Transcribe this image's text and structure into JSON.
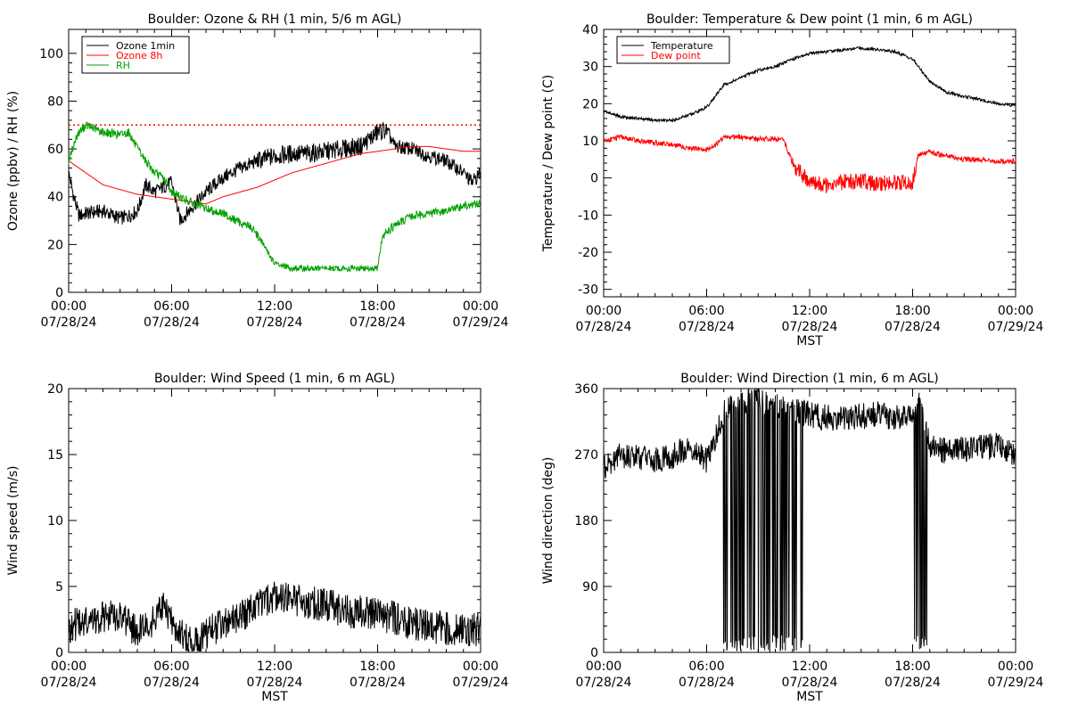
{
  "chart_data": [
    {
      "type": "line",
      "title": "Boulder: Ozone & RH (1 min, 5/6 m AGL)",
      "xlabel": "",
      "ylabel": "Ozone (ppbv) / RH (%)",
      "xlim": [
        0,
        24
      ],
      "ylim": [
        0,
        110
      ],
      "xticks": [
        "00:00\n07/28/24",
        "06:00\n07/28/24",
        "12:00\n07/28/24",
        "18:00\n07/28/24",
        "00:00\n07/29/24"
      ],
      "yticks": [
        0,
        20,
        40,
        60,
        80,
        100
      ],
      "legend": {
        "position": "top-left"
      },
      "reference_lines": [
        {
          "y": 70,
          "color": "#ff0000",
          "style": "dotted"
        }
      ],
      "series": [
        {
          "name": "Ozone 1min",
          "color": "#000000",
          "x": [
            0,
            0.3,
            0.6,
            1,
            2,
            3,
            3.5,
            4,
            4.5,
            5,
            5.5,
            6,
            6.5,
            7,
            8,
            9,
            10,
            11,
            12,
            13,
            14,
            15,
            16,
            17,
            18,
            18.5,
            19,
            20,
            21,
            22,
            23,
            23.5,
            24
          ],
          "y": [
            50,
            40,
            32,
            33,
            34,
            31,
            32,
            34,
            45,
            42,
            44,
            46,
            30,
            34,
            42,
            48,
            52,
            55,
            57,
            58,
            58,
            59,
            60,
            61,
            67,
            68,
            61,
            60,
            57,
            55,
            50,
            46,
            50
          ]
        },
        {
          "name": "Ozone 8h",
          "color": "#ff0000",
          "x": [
            0,
            1,
            2,
            3,
            4,
            5,
            6,
            7,
            8,
            9,
            10,
            11,
            12,
            13,
            14,
            15,
            16,
            17,
            18,
            19,
            20,
            21,
            22,
            23,
            24
          ],
          "y": [
            55,
            50,
            45,
            43,
            41,
            40,
            39,
            38,
            37,
            40,
            42,
            44,
            47,
            50,
            52,
            54,
            56,
            58,
            59,
            60,
            61,
            61,
            60,
            59,
            59
          ]
        },
        {
          "name": "RH",
          "color": "#00a000",
          "x": [
            0,
            0.5,
            1,
            2,
            3,
            3.5,
            4,
            5,
            5.5,
            6,
            7,
            8,
            9,
            10,
            10.5,
            11,
            11.5,
            12,
            13,
            14,
            15,
            16,
            17,
            18,
            18.3,
            19,
            20,
            21,
            22,
            23,
            24
          ],
          "y": [
            55,
            66,
            70,
            67,
            66,
            67,
            60,
            50,
            48,
            42,
            38,
            35,
            33,
            29,
            28,
            24,
            18,
            12,
            10,
            10,
            10,
            10,
            10,
            10,
            24,
            28,
            32,
            33,
            34,
            36,
            37
          ]
        }
      ]
    },
    {
      "type": "line",
      "title": "Boulder: Temperature & Dew point (1 min, 6 m AGL)",
      "xlabel": "MST",
      "ylabel": "Temperature / Dew point (C)",
      "xlim": [
        0,
        24
      ],
      "ylim": [
        -32,
        40
      ],
      "xticks": [
        "00:00\n07/28/24",
        "06:00\n07/28/24",
        "12:00\n07/28/24",
        "18:00\n07/28/24",
        "00:00\n07/29/24"
      ],
      "yticks": [
        -30,
        -20,
        -10,
        0,
        10,
        20,
        30,
        40
      ],
      "legend": {
        "position": "top-left"
      },
      "series": [
        {
          "name": "Temperature",
          "color": "#000000",
          "x": [
            0,
            1,
            2,
            3,
            4,
            5,
            6,
            6.5,
            7,
            8,
            9,
            10,
            11,
            12,
            13,
            14,
            15,
            16,
            17,
            18,
            19,
            20,
            21,
            22,
            23,
            24
          ],
          "y": [
            18,
            16.5,
            16,
            15.5,
            15.5,
            17,
            19,
            22,
            25,
            27,
            29,
            30,
            32,
            33.5,
            34,
            34.5,
            35,
            34.5,
            34,
            32,
            26,
            23,
            22,
            21,
            20,
            19.5
          ]
        },
        {
          "name": "Dew point",
          "color": "#ff0000",
          "x": [
            0,
            1,
            2,
            3,
            4,
            5,
            6,
            6.5,
            7,
            8,
            9,
            10,
            10.5,
            11,
            11.5,
            12,
            13,
            14,
            15,
            16,
            17,
            18,
            18.3,
            19,
            20,
            21,
            22,
            23,
            24
          ],
          "y": [
            10,
            11,
            10,
            9.5,
            9,
            8,
            7.5,
            9,
            11,
            11,
            10.5,
            10.5,
            10,
            4,
            1,
            -1,
            -2,
            -1,
            -1,
            -1.5,
            -1,
            -1.5,
            6,
            7,
            6,
            5,
            5,
            4.5,
            4.5
          ]
        }
      ]
    },
    {
      "type": "line",
      "title": "Boulder: Wind Speed (1 min, 6 m AGL)",
      "xlabel": "MST",
      "ylabel": "Wind speed (m/s)",
      "xlim": [
        0,
        24
      ],
      "ylim": [
        0,
        20
      ],
      "xticks": [
        "00:00\n07/28/24",
        "06:00\n07/28/24",
        "12:00\n07/28/24",
        "18:00\n07/28/24",
        "00:00\n07/29/24"
      ],
      "yticks": [
        0,
        5,
        10,
        15,
        20
      ],
      "series": [
        {
          "color": "#000000",
          "x": [
            0,
            1,
            2,
            3,
            4,
            5,
            5.5,
            6,
            7,
            7.5,
            8,
            9,
            10,
            11,
            12,
            13,
            14,
            15,
            16,
            17,
            18,
            19,
            20,
            21,
            22,
            23,
            24
          ],
          "y": [
            2,
            2.2,
            2.6,
            2.8,
            1.5,
            2.6,
            3.4,
            2.2,
            0.8,
            0.6,
            1.5,
            2,
            2.8,
            3.5,
            4.2,
            4,
            3.8,
            3.6,
            3.2,
            3,
            2.8,
            2.6,
            2.2,
            2,
            1.8,
            1.6,
            1.8
          ]
        }
      ]
    },
    {
      "type": "line",
      "title": "Boulder: Wind Direction (1 min, 6 m AGL)",
      "xlabel": "MST",
      "ylabel": "Wind direction (deg)",
      "xlim": [
        0,
        24
      ],
      "ylim": [
        0,
        360
      ],
      "xticks": [
        "00:00\n07/28/24",
        "06:00\n07/28/24",
        "12:00\n07/28/24",
        "18:00\n07/28/24",
        "00:00\n07/29/24"
      ],
      "yticks": [
        0,
        90,
        180,
        270,
        360
      ],
      "series": [
        {
          "color": "#000000",
          "x": [
            0,
            1,
            2,
            3,
            4,
            5,
            6,
            6.5,
            7,
            7.5,
            8,
            9,
            10,
            11,
            12,
            13,
            14,
            15,
            16,
            17,
            18,
            18.5,
            19,
            20,
            21,
            22,
            23,
            24
          ],
          "y": [
            250,
            270,
            265,
            262,
            268,
            280,
            262,
            290,
            330,
            335,
            340,
            345,
            340,
            330,
            325,
            320,
            318,
            322,
            325,
            320,
            330,
            340,
            280,
            275,
            278,
            280,
            282,
            270
          ]
        }
      ]
    }
  ]
}
